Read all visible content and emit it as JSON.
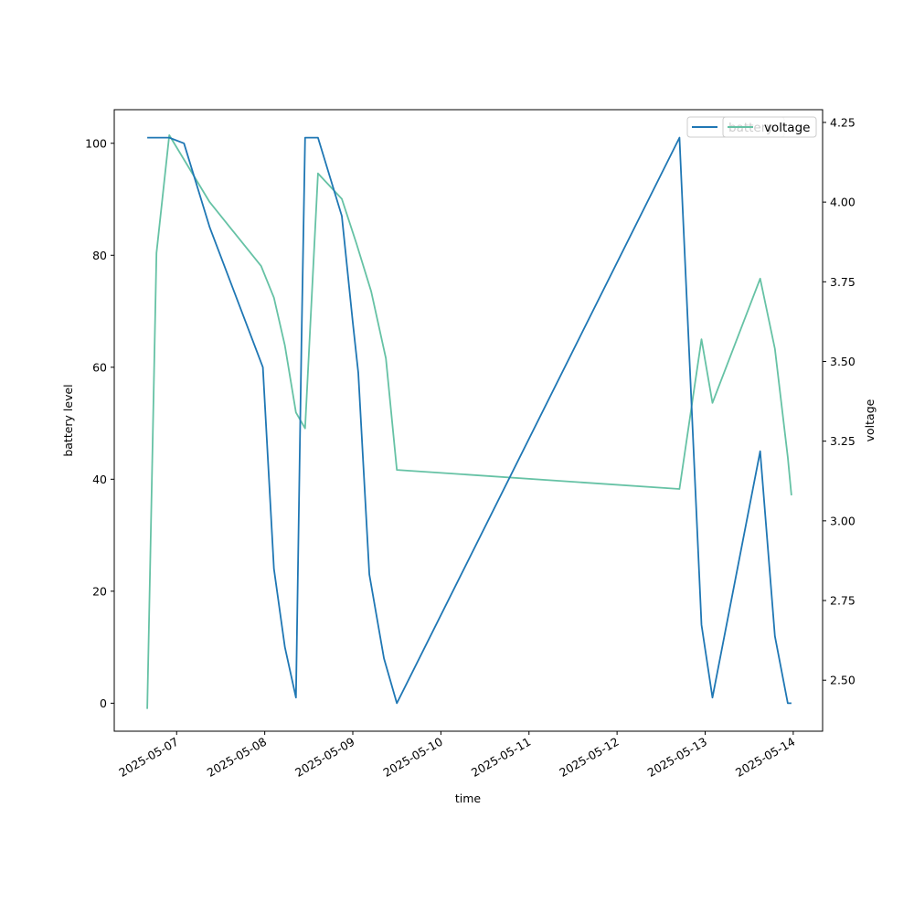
{
  "chart_data": {
    "type": "line",
    "xlabel": "time",
    "ylabel_left": "battery level",
    "ylabel_right": "voltage",
    "x_ticks": [
      "2025-05-07",
      "2025-05-08",
      "2025-05-09",
      "2025-05-10",
      "2025-05-11",
      "2025-05-12",
      "2025-05-13",
      "2025-05-14"
    ],
    "xlim": [
      "2025-05-06 07:00",
      "2025-05-14 08:00"
    ],
    "y_left": {
      "ylim": [
        -5,
        106
      ],
      "ticks": [
        0,
        20,
        40,
        60,
        80,
        100
      ]
    },
    "y_right": {
      "ylim": [
        2.34,
        4.29
      ],
      "ticks": [
        2.5,
        2.75,
        3.0,
        3.25,
        3.5,
        3.75,
        4.0,
        4.25
      ]
    },
    "grid": false,
    "legend_placement": "top-right",
    "colors": {
      "battery": "#1f77b4",
      "voltage": "#66c2a5"
    },
    "series": [
      {
        "name": "battery",
        "axis": "left",
        "points": [
          [
            "2025-05-06 16:00",
            101
          ],
          [
            "2025-05-06 22:00",
            101
          ],
          [
            "2025-05-07 02:00",
            100
          ],
          [
            "2025-05-07 09:00",
            85
          ],
          [
            "2025-05-07 23:30",
            60
          ],
          [
            "2025-05-08 02:30",
            24
          ],
          [
            "2025-05-08 05:30",
            10
          ],
          [
            "2025-05-08 08:30",
            1
          ],
          [
            "2025-05-08 10:00",
            64
          ],
          [
            "2025-05-08 11:00",
            101
          ],
          [
            "2025-05-08 14:30",
            101
          ],
          [
            "2025-05-08 21:00",
            87
          ],
          [
            "2025-05-09 00:00",
            68
          ],
          [
            "2025-05-09 01:30",
            59
          ],
          [
            "2025-05-09 04:30",
            23
          ],
          [
            "2025-05-09 08:30",
            8
          ],
          [
            "2025-05-09 12:00",
            0
          ],
          [
            "2025-05-12 17:00",
            101
          ],
          [
            "2025-05-12 23:00",
            14
          ],
          [
            "2025-05-13 02:00",
            1
          ],
          [
            "2025-05-13 15:00",
            45
          ],
          [
            "2025-05-13 19:00",
            12
          ],
          [
            "2025-05-13 22:30",
            0
          ],
          [
            "2025-05-13 23:30",
            0
          ]
        ]
      },
      {
        "name": "voltage",
        "axis": "right",
        "points": [
          [
            "2025-05-06 16:00",
            2.41
          ],
          [
            "2025-05-06 18:30",
            3.84
          ],
          [
            "2025-05-06 22:00",
            4.21
          ],
          [
            "2025-05-07 09:00",
            4.0
          ],
          [
            "2025-05-07 23:00",
            3.8
          ],
          [
            "2025-05-08 02:30",
            3.7
          ],
          [
            "2025-05-08 05:30",
            3.55
          ],
          [
            "2025-05-08 08:30",
            3.34
          ],
          [
            "2025-05-08 11:00",
            3.29
          ],
          [
            "2025-05-08 14:30",
            4.09
          ],
          [
            "2025-05-08 21:00",
            4.01
          ],
          [
            "2025-05-09 01:00",
            3.87
          ],
          [
            "2025-05-09 05:00",
            3.72
          ],
          [
            "2025-05-09 09:00",
            3.51
          ],
          [
            "2025-05-09 12:00",
            3.16
          ],
          [
            "2025-05-12 17:00",
            3.1
          ],
          [
            "2025-05-12 23:00",
            3.57
          ],
          [
            "2025-05-13 02:00",
            3.37
          ],
          [
            "2025-05-13 15:00",
            3.76
          ],
          [
            "2025-05-13 19:00",
            3.54
          ],
          [
            "2025-05-13 22:30",
            3.2
          ],
          [
            "2025-05-13 23:30",
            3.08
          ]
        ]
      }
    ]
  }
}
